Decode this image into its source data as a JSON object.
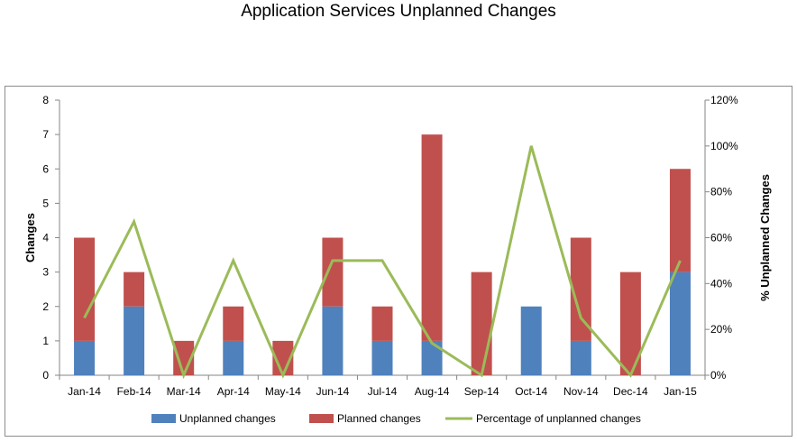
{
  "chart_data": {
    "type": "bar",
    "stacked": true,
    "title": "Application Services Unplanned Changes",
    "categories": [
      "Jan-14",
      "Feb-14",
      "Mar-14",
      "Apr-14",
      "May-14",
      "Jun-14",
      "Jul-14",
      "Aug-14",
      "Sep-14",
      "Oct-14",
      "Nov-14",
      "Dec-14",
      "Jan-15"
    ],
    "series": [
      {
        "name": "Unplanned changes",
        "type": "bar",
        "axis": "left",
        "color": "#4f81bd",
        "values": [
          1,
          2,
          0,
          1,
          0,
          2,
          1,
          1,
          0,
          2,
          1,
          0,
          3
        ]
      },
      {
        "name": "Planned changes",
        "type": "bar",
        "axis": "left",
        "color": "#c0504d",
        "values": [
          3,
          1,
          1,
          1,
          1,
          2,
          1,
          6,
          3,
          0,
          3,
          3,
          3
        ]
      },
      {
        "name": "Percentage of unplanned changes",
        "type": "line",
        "axis": "right",
        "color": "#9bbb59",
        "values": [
          25,
          67,
          0,
          50,
          0,
          50,
          50,
          14,
          0,
          100,
          25,
          0,
          50
        ]
      }
    ],
    "ylabel": "Changes",
    "ylim": [
      0,
      8
    ],
    "yticks": [
      "0",
      "1",
      "2",
      "3",
      "4",
      "5",
      "6",
      "7",
      "8"
    ],
    "y2label": "% Unplanned Changes",
    "y2lim": [
      0,
      120
    ],
    "y2ticks": [
      "0%",
      "20%",
      "40%",
      "60%",
      "80%",
      "100%",
      "120%"
    ],
    "grid": false,
    "legend_position": "bottom"
  }
}
